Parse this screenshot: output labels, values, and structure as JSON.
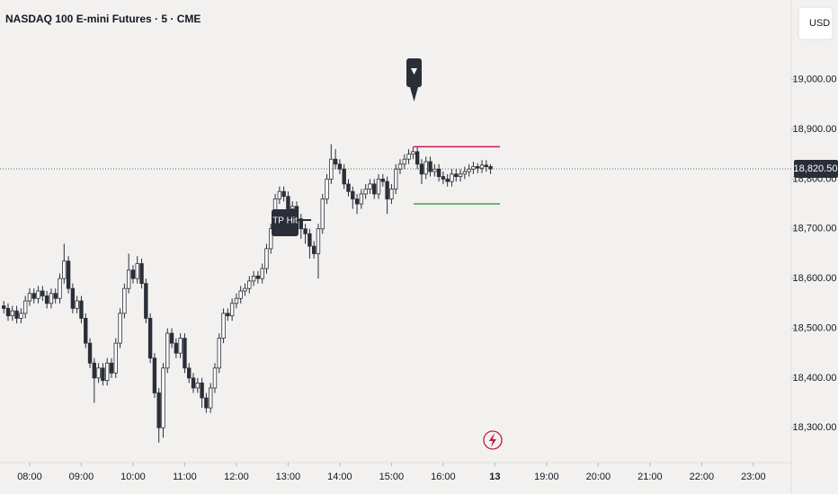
{
  "chart_data": {
    "type": "candlestick",
    "title": "NASDAQ 100 E-mini Futures · 5 · CME",
    "currency": "USD",
    "annotations": [
      "TP Hit"
    ],
    "xlim": [
      445.6,
      1364
    ],
    "xticks": [
      {
        "value": 480,
        "label": "08:00"
      },
      {
        "value": 540,
        "label": "09:00"
      },
      {
        "value": 600,
        "label": "10:00"
      },
      {
        "value": 660,
        "label": "11:00"
      },
      {
        "value": 720,
        "label": "12:00"
      },
      {
        "value": 780,
        "label": "13:00"
      },
      {
        "value": 840,
        "label": "14:00"
      },
      {
        "value": 900,
        "label": "15:00"
      },
      {
        "value": 960,
        "label": "16:00"
      },
      {
        "value": 1020,
        "label": "13"
      },
      {
        "value": 1080,
        "label": "19:00"
      },
      {
        "value": 1140,
        "label": "20:00"
      },
      {
        "value": 1200,
        "label": "21:00"
      },
      {
        "value": 1260,
        "label": "22:00"
      },
      {
        "value": 1320,
        "label": "23:00"
      }
    ],
    "ylim": [
      18230,
      19160
    ],
    "yticks": [
      {
        "value": 18300,
        "label": "18,300.00"
      },
      {
        "value": 18400,
        "label": "18,400.00"
      },
      {
        "value": 18500,
        "label": "18,500.00"
      },
      {
        "value": 18600,
        "label": "18,600.00"
      },
      {
        "value": 18700,
        "label": "18,700.00"
      },
      {
        "value": 18800,
        "label": "18,800.00"
      },
      {
        "value": 18900,
        "label": "18,900.00"
      },
      {
        "value": 19000,
        "label": "19,000.00"
      }
    ],
    "last_price": {
      "value": 18820.5,
      "label": "18,820.50"
    },
    "levels": [
      {
        "value": 18865,
        "color": "#c2185b"
      },
      {
        "value": 18750,
        "color": "#43a047"
      }
    ],
    "up_color": "#ffffff",
    "down_color": "#2a2e39",
    "x": [
      450,
      455,
      460,
      465,
      470,
      475,
      480,
      485,
      490,
      495,
      500,
      505,
      510,
      515,
      520,
      525,
      530,
      535,
      540,
      545,
      550,
      555,
      560,
      565,
      570,
      575,
      580,
      585,
      590,
      595,
      600,
      605,
      610,
      615,
      620,
      625,
      630,
      635,
      640,
      645,
      650,
      655,
      660,
      665,
      670,
      675,
      680,
      685,
      690,
      695,
      700,
      705,
      710,
      715,
      720,
      725,
      730,
      735,
      740,
      745,
      750,
      755,
      760,
      765,
      770,
      775,
      780,
      785,
      790,
      795,
      800,
      805,
      810,
      815,
      820,
      825,
      830,
      835,
      840,
      845,
      850,
      855,
      860,
      865,
      870,
      875,
      880,
      885,
      890,
      895,
      900,
      905,
      910,
      915,
      920,
      925,
      930,
      935,
      940,
      945,
      950,
      955,
      960,
      965,
      970,
      975,
      980,
      985,
      990,
      995,
      1000,
      1005,
      1010,
      1015
    ],
    "open": [
      18545,
      18540,
      18525,
      18535,
      18520,
      18530,
      18555,
      18570,
      18560,
      18575,
      18565,
      18550,
      18570,
      18560,
      18600,
      18635,
      18580,
      18540,
      18555,
      18520,
      18470,
      18430,
      18400,
      18420,
      18395,
      18430,
      18410,
      18470,
      18530,
      18580,
      18617,
      18600,
      18630,
      18590,
      18520,
      18440,
      18370,
      18300,
      18420,
      18490,
      18470,
      18450,
      18480,
      18420,
      18400,
      18380,
      18390,
      18360,
      18340,
      18380,
      18420,
      18480,
      18530,
      18525,
      18550,
      18560,
      18575,
      18580,
      18595,
      18605,
      18600,
      18620,
      18660,
      18700,
      18760,
      18775,
      18765,
      18740,
      18745,
      18720,
      18700,
      18690,
      18665,
      18650,
      18700,
      18760,
      18800,
      18840,
      18830,
      18820,
      18790,
      18775,
      18760,
      18750,
      18770,
      18780,
      18790,
      18770,
      18800,
      18795,
      18760,
      18780,
      18820,
      18830,
      18840,
      18850,
      18855,
      18830,
      18810,
      18835,
      18815,
      18820,
      18805,
      18800,
      18795,
      18810,
      18805,
      18810,
      18815,
      18820,
      18825,
      18822,
      18828,
      18825
    ],
    "high": [
      18555,
      18550,
      18545,
      18545,
      18540,
      18565,
      18580,
      18580,
      18585,
      18585,
      18575,
      18580,
      18580,
      18610,
      18670,
      18645,
      18590,
      18565,
      18565,
      18530,
      18480,
      18440,
      18430,
      18430,
      18440,
      18440,
      18480,
      18540,
      18590,
      18650,
      18627,
      18645,
      18640,
      18600,
      18530,
      18450,
      18380,
      18430,
      18500,
      18500,
      18480,
      18490,
      18490,
      18430,
      18410,
      18400,
      18400,
      18370,
      18390,
      18430,
      18490,
      18540,
      18540,
      18560,
      18570,
      18585,
      18590,
      18605,
      18615,
      18615,
      18630,
      18670,
      18710,
      18770,
      18785,
      18785,
      18775,
      18755,
      18755,
      18730,
      18710,
      18700,
      18675,
      18710,
      18770,
      18810,
      18870,
      18860,
      18840,
      18830,
      18800,
      18785,
      18770,
      18780,
      18790,
      18800,
      18800,
      18810,
      18810,
      18805,
      18790,
      18830,
      18840,
      18850,
      18860,
      18865,
      18865,
      18840,
      18845,
      18845,
      18830,
      18830,
      18815,
      18810,
      18820,
      18820,
      18820,
      18825,
      18830,
      18835,
      18832,
      18838,
      18838,
      18830
    ],
    "low": [
      18530,
      18515,
      18515,
      18510,
      18510,
      18520,
      18545,
      18550,
      18550,
      18555,
      18540,
      18540,
      18550,
      18550,
      18590,
      18570,
      18530,
      18530,
      18510,
      18460,
      18420,
      18350,
      18390,
      18385,
      18385,
      18400,
      18400,
      18460,
      18520,
      18570,
      18590,
      18590,
      18580,
      18510,
      18430,
      18360,
      18270,
      18280,
      18410,
      18460,
      18440,
      18440,
      18410,
      18390,
      18370,
      18370,
      18340,
      18330,
      18330,
      18370,
      18410,
      18470,
      18515,
      18515,
      18540,
      18550,
      18565,
      18570,
      18585,
      18590,
      18590,
      18610,
      18650,
      18690,
      18750,
      18755,
      18730,
      18730,
      18710,
      18680,
      18670,
      18640,
      18640,
      18600,
      18690,
      18750,
      18790,
      18820,
      18810,
      18780,
      18765,
      18740,
      18730,
      18740,
      18760,
      18770,
      18760,
      18760,
      18785,
      18730,
      18750,
      18770,
      18810,
      18820,
      18830,
      18840,
      18820,
      18790,
      18800,
      18805,
      18805,
      18795,
      18790,
      18785,
      18785,
      18795,
      18795,
      18800,
      18805,
      18810,
      18812,
      18812,
      18815,
      18810
    ],
    "close": [
      18540,
      18525,
      18535,
      18520,
      18530,
      18555,
      18570,
      18560,
      18575,
      18565,
      18550,
      18570,
      18560,
      18600,
      18635,
      18580,
      18540,
      18555,
      18520,
      18470,
      18430,
      18400,
      18420,
      18395,
      18430,
      18410,
      18470,
      18530,
      18580,
      18617,
      18600,
      18630,
      18590,
      18520,
      18440,
      18370,
      18300,
      18420,
      18490,
      18470,
      18450,
      18480,
      18420,
      18400,
      18380,
      18390,
      18360,
      18340,
      18380,
      18420,
      18480,
      18530,
      18525,
      18550,
      18560,
      18575,
      18580,
      18595,
      18605,
      18600,
      18620,
      18660,
      18700,
      18760,
      18775,
      18765,
      18740,
      18745,
      18720,
      18700,
      18690,
      18665,
      18650,
      18700,
      18760,
      18800,
      18840,
      18830,
      18820,
      18790,
      18775,
      18760,
      18750,
      18770,
      18780,
      18790,
      18770,
      18800,
      18795,
      18760,
      18780,
      18820,
      18830,
      18840,
      18850,
      18855,
      18830,
      18810,
      18835,
      18815,
      18820,
      18805,
      18800,
      18795,
      18810,
      18805,
      18810,
      18815,
      18820,
      18825,
      18822,
      18828,
      18825,
      18820.5
    ]
  }
}
